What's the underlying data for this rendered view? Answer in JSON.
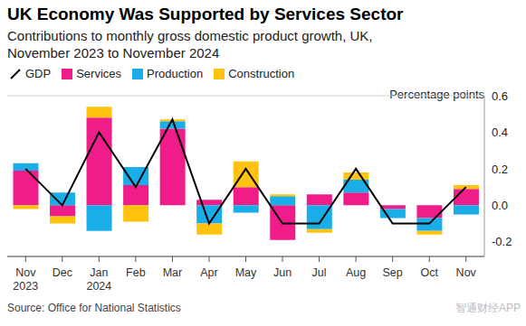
{
  "chart_data": {
    "type": "bar",
    "title": "UK Economy Was Supported by Services Sector",
    "subtitle": "Contributions to monthly gross domestic product growth, UK, November 2023 to November 2024",
    "y_label": "Percentage points",
    "source": "Source: Office for National Statistics",
    "watermark": "智通财经APP",
    "categories": [
      "Nov 2023",
      "Dec",
      "Jan 2024",
      "Feb",
      "Mar",
      "Apr",
      "May",
      "Jun",
      "Jul",
      "Aug",
      "Sep",
      "Oct",
      "Nov"
    ],
    "stacked": true,
    "legend": "top-left",
    "grid": true,
    "series": [
      {
        "name": "GDP",
        "type": "line",
        "color": "#000000",
        "values": [
          0.2,
          0.0,
          0.4,
          0.1,
          0.47,
          -0.1,
          0.2,
          -0.1,
          -0.1,
          0.2,
          -0.1,
          -0.1,
          0.1
        ]
      },
      {
        "name": "Services",
        "type": "bar",
        "color": "#ef1c8a",
        "values": [
          0.19,
          -0.06,
          0.48,
          0.11,
          0.42,
          0.03,
          0.1,
          -0.19,
          0.06,
          0.07,
          -0.02,
          -0.07,
          0.09
        ]
      },
      {
        "name": "Production",
        "type": "bar",
        "color": "#1aaee8",
        "values": [
          0.04,
          0.07,
          -0.14,
          0.1,
          0.04,
          -0.1,
          -0.04,
          0.05,
          -0.13,
          0.07,
          -0.05,
          -0.07,
          -0.05
        ]
      },
      {
        "name": "Construction",
        "type": "bar",
        "color": "#ffc20e",
        "values": [
          -0.02,
          -0.04,
          0.06,
          -0.09,
          0.01,
          -0.06,
          0.14,
          0.01,
          -0.02,
          0.04,
          0.0,
          -0.02,
          0.02
        ]
      }
    ],
    "ylim": [
      -0.28,
      0.6
    ],
    "yticks": [
      -0.2,
      {
        "value": 0,
        "label": "0.0"
      },
      0.2,
      0.4,
      0.6
    ]
  }
}
